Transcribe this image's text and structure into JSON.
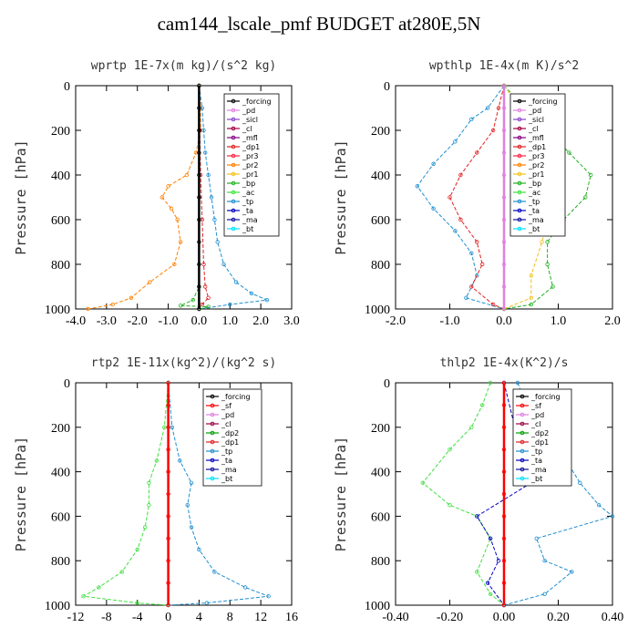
{
  "title": "cam144_lscale_pmf  BUDGET at280E,5N",
  "colors": {
    "forcing": "#000000",
    "pd": "#e080e0",
    "sicl": "#8844cc",
    "cl": "#a00040",
    "mfl": "#800080",
    "dp1": "#e02020",
    "pr3": "#ff2040",
    "pr2": "#ff8000",
    "pr1": "#f0c020",
    "bp": "#20b020",
    "ac": "#40e040",
    "tp": "#1f8fcf",
    "ta": "#0000c0",
    "ma": "#1010a0",
    "bt": "#00e0ff",
    "sf": "#ff0000",
    "dp2": "#00a000"
  },
  "chart_data": [
    {
      "type": "line",
      "title": "wprtp  1E-7x(m kg)/(s^2 kg)",
      "xlabel": "",
      "ylabel": "Pressure [hPa]",
      "xlim": [
        -4.0,
        3.0
      ],
      "ylim": [
        1000,
        0
      ],
      "xticks": [
        "-4.0",
        "-3.0",
        "-2.0",
        "-1.0",
        "0.0",
        "1.0",
        "2.0",
        "3.0"
      ],
      "xtick_values": [
        -4,
        -3,
        -2,
        -1,
        0,
        1,
        2,
        3
      ],
      "yticks": [
        "0",
        "200",
        "400",
        "600",
        "800",
        "1000"
      ],
      "ytick_values": [
        0,
        200,
        400,
        600,
        800,
        1000
      ],
      "legend": [
        "_forcing",
        "_pd",
        "_sicl",
        "_cl",
        "_mfl",
        "_dp1",
        "_pr3",
        "_pr2",
        "_pr1",
        "_bp",
        "_ac",
        "_tp",
        "_ta",
        "_ma",
        "_bt"
      ],
      "series": [
        {
          "name": "_pr2",
          "key": "pr2",
          "values": [
            [
              0,
              0
            ],
            [
              0.05,
              100
            ],
            [
              0.05,
              200
            ],
            [
              -0.1,
              300
            ],
            [
              -0.4,
              400
            ],
            [
              -1.0,
              450
            ],
            [
              -1.2,
              500
            ],
            [
              -0.9,
              550
            ],
            [
              -0.7,
              600
            ],
            [
              -0.6,
              700
            ],
            [
              -0.8,
              800
            ],
            [
              -1.6,
              880
            ],
            [
              -2.2,
              950
            ],
            [
              -2.8,
              980
            ],
            [
              -3.6,
              1000
            ]
          ]
        },
        {
          "name": "_tp",
          "key": "tp",
          "values": [
            [
              0,
              0
            ],
            [
              0.1,
              100
            ],
            [
              0.15,
              200
            ],
            [
              0.2,
              300
            ],
            [
              0.3,
              400
            ],
            [
              0.4,
              500
            ],
            [
              0.5,
              600
            ],
            [
              0.6,
              700
            ],
            [
              0.8,
              800
            ],
            [
              1.2,
              880
            ],
            [
              1.7,
              930
            ],
            [
              2.2,
              960
            ],
            [
              1.0,
              980
            ],
            [
              0,
              1000
            ]
          ]
        },
        {
          "name": "_dp1",
          "key": "dp1",
          "values": [
            [
              0,
              0
            ],
            [
              0.02,
              200
            ],
            [
              0.05,
              400
            ],
            [
              0.1,
              600
            ],
            [
              0.15,
              800
            ],
            [
              0.2,
              900
            ],
            [
              0.3,
              950
            ],
            [
              0.1,
              980
            ],
            [
              0,
              1000
            ]
          ]
        },
        {
          "name": "_bp",
          "key": "bp",
          "values": [
            [
              0,
              0
            ],
            [
              0,
              900
            ],
            [
              -0.2,
              960
            ],
            [
              -0.6,
              985
            ],
            [
              0.3,
              990
            ],
            [
              0,
              1000
            ]
          ]
        },
        {
          "name": "_forcing",
          "key": "forcing",
          "values": [
            [
              0,
              0
            ],
            [
              0,
              100
            ],
            [
              0,
              200
            ],
            [
              0,
              300
            ],
            [
              0,
              400
            ],
            [
              0,
              500
            ],
            [
              0,
              600
            ],
            [
              0,
              700
            ],
            [
              0,
              800
            ],
            [
              0,
              900
            ],
            [
              0,
              1000
            ]
          ]
        }
      ]
    },
    {
      "type": "line",
      "title": "wpthlp  1E-4x(m K)/s^2",
      "xlabel": "",
      "ylabel": "Pressure [hPa]",
      "xlim": [
        -2.0,
        2.0
      ],
      "ylim": [
        1000,
        0
      ],
      "xticks": [
        "-2.0",
        "-1.0",
        "0.0",
        "1.0",
        "2.0"
      ],
      "xtick_values": [
        -2,
        -1,
        0,
        1,
        2
      ],
      "yticks": [
        "0",
        "200",
        "400",
        "600",
        "800",
        "1000"
      ],
      "ytick_values": [
        0,
        200,
        400,
        600,
        800,
        1000
      ],
      "legend": [
        "_forcing",
        "_pd",
        "_sicl",
        "_cl",
        "_mfl",
        "_dp1",
        "_pr3",
        "_pr2",
        "_pr1",
        "_bp",
        "_ac",
        "_tp",
        "_ta",
        "_ma",
        "_bt"
      ],
      "series": [
        {
          "name": "_tp",
          "key": "tp",
          "values": [
            [
              0,
              0
            ],
            [
              -0.3,
              100
            ],
            [
              -0.6,
              150
            ],
            [
              -0.9,
              250
            ],
            [
              -1.3,
              350
            ],
            [
              -1.6,
              450
            ],
            [
              -1.3,
              550
            ],
            [
              -0.9,
              650
            ],
            [
              -0.6,
              750
            ],
            [
              -0.5,
              850
            ],
            [
              -0.7,
              950
            ],
            [
              0,
              1000
            ]
          ]
        },
        {
          "name": "_dp1",
          "key": "dp1",
          "values": [
            [
              0,
              0
            ],
            [
              -0.1,
              100
            ],
            [
              -0.2,
              200
            ],
            [
              -0.5,
              300
            ],
            [
              -0.8,
              400
            ],
            [
              -1.0,
              500
            ],
            [
              -0.8,
              600
            ],
            [
              -0.5,
              700
            ],
            [
              -0.4,
              800
            ],
            [
              -0.6,
              900
            ],
            [
              -0.2,
              980
            ],
            [
              0,
              1000
            ]
          ]
        },
        {
          "name": "_bp",
          "key": "bp",
          "values": [
            [
              0,
              0
            ],
            [
              0.4,
              100
            ],
            [
              0.8,
              200
            ],
            [
              1.2,
              300
            ],
            [
              1.6,
              400
            ],
            [
              1.5,
              500
            ],
            [
              1.1,
              600
            ],
            [
              0.8,
              700
            ],
            [
              0.8,
              800
            ],
            [
              0.9,
              900
            ],
            [
              0.5,
              980
            ],
            [
              0,
              1000
            ]
          ]
        },
        {
          "name": "_pr1",
          "key": "pr1",
          "values": [
            [
              0,
              0
            ],
            [
              0.3,
              100
            ],
            [
              0.5,
              200
            ],
            [
              0.7,
              350
            ],
            [
              0.9,
              550
            ],
            [
              0.7,
              700
            ],
            [
              0.5,
              850
            ],
            [
              0.5,
              950
            ],
            [
              0,
              1000
            ]
          ]
        },
        {
          "name": "_pd",
          "key": "pd",
          "values": [
            [
              0,
              0
            ],
            [
              0,
              100
            ],
            [
              0,
              200
            ],
            [
              0,
              300
            ],
            [
              0,
              400
            ],
            [
              0,
              500
            ],
            [
              0,
              600
            ],
            [
              0,
              700
            ],
            [
              0,
              800
            ],
            [
              0,
              900
            ],
            [
              0,
              1000
            ]
          ]
        }
      ]
    },
    {
      "type": "line",
      "title": "rtp2  1E-11x(kg^2)/(kg^2 s)",
      "xlabel": "",
      "ylabel": "Pressure [hPa]",
      "xlim": [
        -12,
        16
      ],
      "ylim": [
        1000,
        0
      ],
      "xticks": [
        "-12",
        "-8",
        "-4",
        "0",
        "4",
        "8",
        "12",
        "16"
      ],
      "xtick_values": [
        -12,
        -8,
        -4,
        0,
        4,
        8,
        12,
        16
      ],
      "yticks": [
        "0",
        "200",
        "400",
        "600",
        "800",
        "1000"
      ],
      "ytick_values": [
        0,
        200,
        400,
        600,
        800,
        1000
      ],
      "legend": [
        "_forcing",
        "_sf",
        "_pd",
        "_cl",
        "_dp2",
        "_dp1",
        "_tp",
        "_ta",
        "_ma",
        "_bt"
      ],
      "series": [
        {
          "name": "_dp1",
          "key": "ac",
          "values": [
            [
              0,
              0
            ],
            [
              -0.5,
              200
            ],
            [
              -1.5,
              350
            ],
            [
              -2.5,
              450
            ],
            [
              -2.5,
              550
            ],
            [
              -3.0,
              650
            ],
            [
              -4.0,
              750
            ],
            [
              -6.0,
              850
            ],
            [
              -9.0,
              920
            ],
            [
              -11.0,
              960
            ],
            [
              -4.0,
              990
            ],
            [
              0,
              1000
            ]
          ]
        },
        {
          "name": "_tp",
          "key": "tp",
          "values": [
            [
              0,
              0
            ],
            [
              0.5,
              200
            ],
            [
              1.5,
              350
            ],
            [
              3.0,
              450
            ],
            [
              2.5,
              550
            ],
            [
              3.0,
              650
            ],
            [
              4.0,
              750
            ],
            [
              6.0,
              850
            ],
            [
              10.0,
              920
            ],
            [
              13.0,
              960
            ],
            [
              5.0,
              990
            ],
            [
              0,
              1000
            ]
          ]
        },
        {
          "name": "_forcing",
          "key": "sf",
          "values": [
            [
              0,
              0
            ],
            [
              0,
              100
            ],
            [
              0,
              200
            ],
            [
              0,
              300
            ],
            [
              0,
              400
            ],
            [
              0,
              500
            ],
            [
              0,
              600
            ],
            [
              0,
              700
            ],
            [
              0,
              800
            ],
            [
              0,
              900
            ],
            [
              0,
              1000
            ]
          ]
        }
      ]
    },
    {
      "type": "line",
      "title": "thlp2  1E-4x(K^2)/s",
      "xlabel": "",
      "ylabel": "Pressure [hPa]",
      "xlim": [
        -0.4,
        0.4
      ],
      "ylim": [
        1000,
        0
      ],
      "xticks": [
        "-0.40",
        "-0.20",
        "0.00",
        "0.20",
        "0.40"
      ],
      "xtick_values": [
        -0.4,
        -0.2,
        0,
        0.2,
        0.4
      ],
      "yticks": [
        "0",
        "200",
        "400",
        "600",
        "800",
        "1000"
      ],
      "ytick_values": [
        0,
        200,
        400,
        600,
        800,
        1000
      ],
      "legend": [
        "_forcing",
        "_sf",
        "_pd",
        "_cl",
        "_dp2",
        "_dp1",
        "_tp",
        "_ta",
        "_ma",
        "_bt"
      ],
      "series": [
        {
          "name": "_dp1",
          "key": "ac",
          "values": [
            [
              -0.05,
              0
            ],
            [
              -0.08,
              100
            ],
            [
              -0.12,
              200
            ],
            [
              -0.2,
              300
            ],
            [
              -0.3,
              450
            ],
            [
              -0.2,
              550
            ],
            [
              -0.1,
              600
            ],
            [
              -0.05,
              700
            ],
            [
              -0.1,
              850
            ],
            [
              -0.05,
              950
            ],
            [
              0,
              1000
            ]
          ]
        },
        {
          "name": "_tp",
          "key": "tp",
          "values": [
            [
              0.05,
              0
            ],
            [
              0.1,
              150
            ],
            [
              0.18,
              250
            ],
            [
              0.28,
              450
            ],
            [
              0.35,
              550
            ],
            [
              0.4,
              600
            ],
            [
              0.12,
              700
            ],
            [
              0.15,
              800
            ],
            [
              0.25,
              850
            ],
            [
              0.15,
              950
            ],
            [
              0,
              1000
            ]
          ]
        },
        {
          "name": "_ta",
          "key": "ta",
          "values": [
            [
              0,
              0
            ],
            [
              0.05,
              250
            ],
            [
              0.12,
              350
            ],
            [
              0.1,
              450
            ],
            [
              -0.1,
              600
            ],
            [
              -0.05,
              700
            ],
            [
              -0.02,
              800
            ],
            [
              -0.06,
              900
            ],
            [
              0,
              1000
            ]
          ]
        },
        {
          "name": "_forcing",
          "key": "sf",
          "values": [
            [
              0,
              0
            ],
            [
              0,
              100
            ],
            [
              0,
              200
            ],
            [
              0,
              300
            ],
            [
              0,
              400
            ],
            [
              0,
              500
            ],
            [
              0,
              600
            ],
            [
              0,
              700
            ],
            [
              0,
              800
            ],
            [
              0,
              900
            ],
            [
              0,
              1000
            ]
          ]
        }
      ]
    }
  ]
}
